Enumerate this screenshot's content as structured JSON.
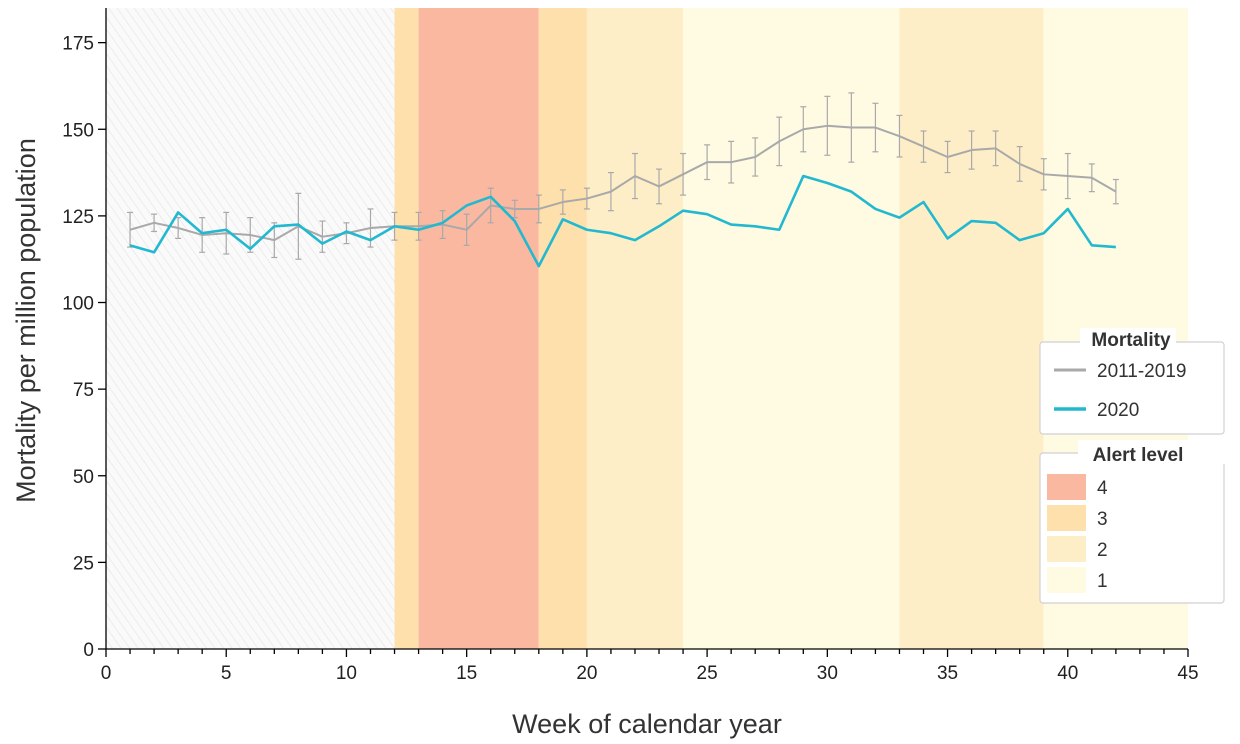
{
  "chart_data": {
    "type": "line",
    "xlabel": "Week of calendar year",
    "ylabel": "Mortality per million population",
    "xlim": [
      0,
      45
    ],
    "ylim": [
      0,
      185
    ],
    "x_ticks": [
      0,
      5,
      10,
      15,
      20,
      25,
      30,
      35,
      40,
      45
    ],
    "y_ticks": [
      0,
      25,
      50,
      75,
      100,
      125,
      150,
      175
    ],
    "grid": false,
    "legend_position": "right",
    "series": [
      {
        "name": "2011-2019",
        "color": "#a9a9a9",
        "x": [
          1,
          2,
          3,
          4,
          5,
          6,
          7,
          8,
          9,
          10,
          11,
          12,
          13,
          14,
          15,
          16,
          17,
          18,
          19,
          20,
          21,
          22,
          23,
          24,
          25,
          26,
          27,
          28,
          29,
          30,
          31,
          32,
          33,
          34,
          35,
          36,
          37,
          38,
          39,
          40,
          41,
          42
        ],
        "y": [
          121,
          123,
          121.5,
          119.5,
          120,
          119.5,
          118,
          122,
          119,
          120,
          121.5,
          122,
          122,
          122.5,
          121,
          128,
          127,
          127,
          129,
          130,
          132,
          136.5,
          133.5,
          137,
          140.5,
          140.5,
          142,
          146.5,
          150,
          151,
          150.5,
          150.5,
          148,
          145,
          142,
          144,
          144.5,
          140,
          137,
          136.5,
          136,
          132
        ],
        "err": [
          5,
          2.5,
          3,
          5,
          6,
          5,
          5,
          9.5,
          4.5,
          3,
          5.5,
          4,
          4,
          4,
          4.5,
          5,
          2.5,
          4,
          3.5,
          3,
          5.5,
          6.5,
          5,
          6,
          5,
          6,
          5.5,
          7,
          6.5,
          8.5,
          10,
          7,
          6,
          4.5,
          4.5,
          5.5,
          5,
          5,
          4.5,
          6.5,
          4,
          3.5
        ]
      },
      {
        "name": "2020",
        "color": "#22b9d0",
        "x": [
          1,
          2,
          3,
          4,
          5,
          6,
          7,
          8,
          9,
          10,
          11,
          12,
          13,
          14,
          15,
          16,
          17,
          18,
          19,
          20,
          21,
          22,
          23,
          24,
          25,
          26,
          27,
          28,
          29,
          30,
          31,
          32,
          33,
          34,
          35,
          36,
          37,
          38,
          39,
          40,
          41,
          42
        ],
        "y": [
          116.5,
          114.5,
          126,
          120,
          121,
          115.5,
          122,
          122.5,
          117,
          120.5,
          118,
          122,
          121,
          123,
          128,
          130.5,
          123.5,
          110.5,
          124,
          121,
          120,
          118,
          122,
          126.5,
          125.5,
          122.5,
          122,
          121,
          136.5,
          134.5,
          132,
          127,
          124.5,
          129,
          118.5,
          123.5,
          123,
          118,
          120,
          127,
          116.5,
          116
        ]
      }
    ],
    "alert_bands": [
      {
        "level": "3",
        "start": 12,
        "end": 13
      },
      {
        "level": "4",
        "start": 13,
        "end": 18
      },
      {
        "level": "3",
        "start": 18,
        "end": 20
      },
      {
        "level": "2",
        "start": 20,
        "end": 24
      },
      {
        "level": "1",
        "start": 24,
        "end": 33
      },
      {
        "level": "2",
        "start": 33,
        "end": 39
      },
      {
        "level": "1",
        "start": 39,
        "end": 45
      }
    ],
    "hatched_region": {
      "start": 0,
      "end": 12
    },
    "legend": {
      "mortality_title": "Mortality",
      "alert_title": "Alert level",
      "alert_levels": [
        {
          "label": "4",
          "color": "#fbb8a0"
        },
        {
          "label": "3",
          "color": "#fde0ac"
        },
        {
          "label": "2",
          "color": "#fdeec8"
        },
        {
          "label": "1",
          "color": "#fefbe2"
        }
      ]
    }
  }
}
